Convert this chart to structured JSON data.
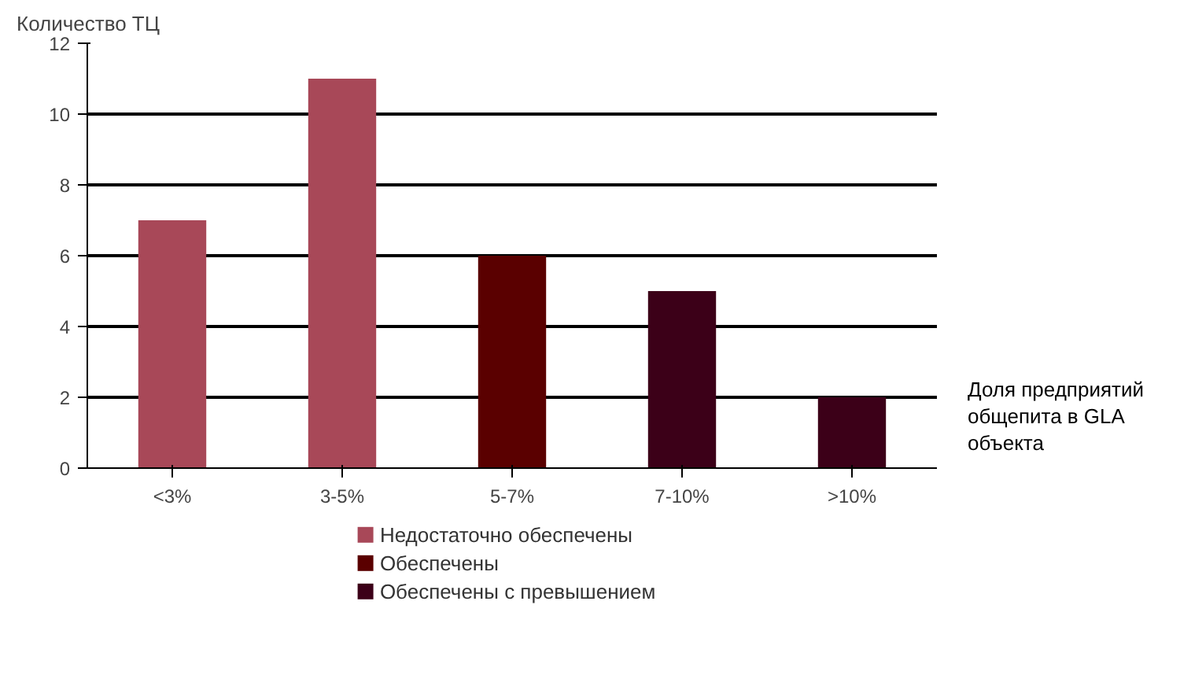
{
  "chart_data": {
    "type": "bar",
    "ylabel": "Количество ТЦ",
    "xlabel": "Доля предприятий общепита в GLA объекта",
    "categories": [
      "<3%",
      "3-5%",
      "5-7%",
      "7-10%",
      ">10%"
    ],
    "series": [
      {
        "name": "Недостаточно обеспечены",
        "color": "#a84858",
        "values": [
          7,
          11,
          null,
          null,
          null
        ]
      },
      {
        "name": "Обеспечены",
        "color": "#5a0000",
        "values": [
          null,
          null,
          6,
          null,
          null
        ]
      },
      {
        "name": "Обеспечены с превышением",
        "color": "#3c0018",
        "values": [
          null,
          null,
          null,
          5,
          2
        ]
      }
    ],
    "ylim": [
      0,
      12
    ],
    "yticks": [
      0,
      2,
      4,
      6,
      8,
      10,
      12
    ],
    "grid": "y",
    "legend": "bottom"
  }
}
